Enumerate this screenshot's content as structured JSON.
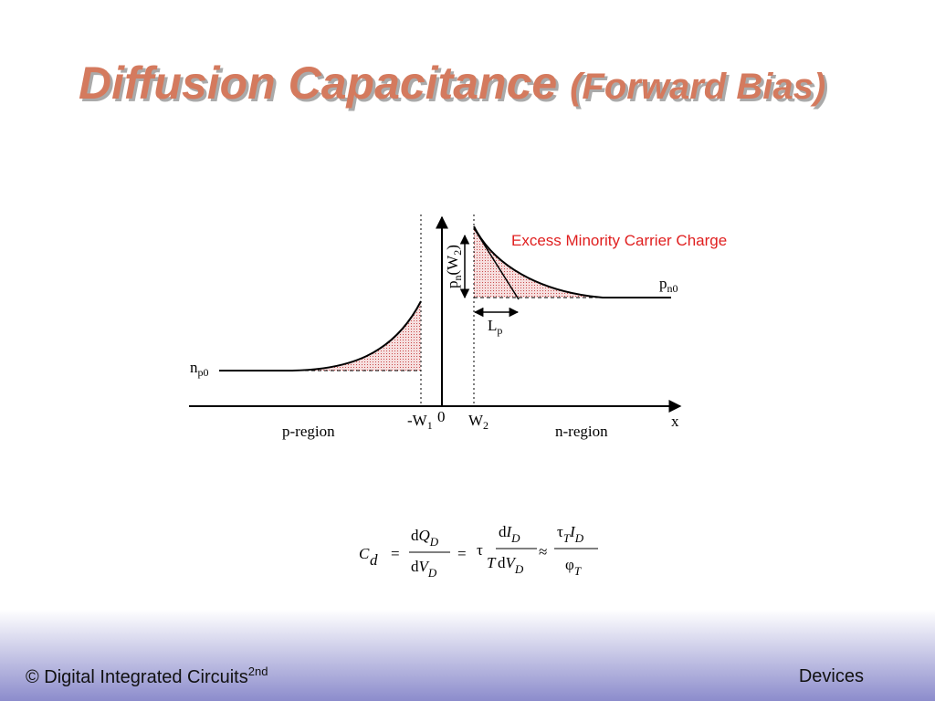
{
  "title": {
    "main": "Diffusion Capacitance",
    "paren": "(Forward Bias)"
  },
  "diagram": {
    "annotation": "Excess Minority Carrier Charge",
    "np0": [
      "n",
      "p0"
    ],
    "pn0": [
      "p",
      "n0"
    ],
    "pnW2": [
      "p",
      "n",
      "(W",
      "2",
      ")"
    ],
    "Lp": [
      "L",
      "p"
    ],
    "minus_W1": [
      "-W",
      "1"
    ],
    "zero": "0",
    "W2": [
      "W",
      "2"
    ],
    "x": "x",
    "p_region": "p-region",
    "n_region": "n-region"
  },
  "formula": [
    "C",
    "d",
    "=",
    "d",
    "Q",
    "D",
    "d",
    "V",
    "D",
    "=",
    "τ",
    "T",
    "d",
    "I",
    "D",
    "d",
    "V",
    "D",
    "≈",
    "τ",
    "T",
    "I",
    "D",
    "φ",
    "T"
  ],
  "footer": {
    "left": "© Digital Integrated Circuits",
    "left_sup": "2nd",
    "right": "Devices"
  }
}
